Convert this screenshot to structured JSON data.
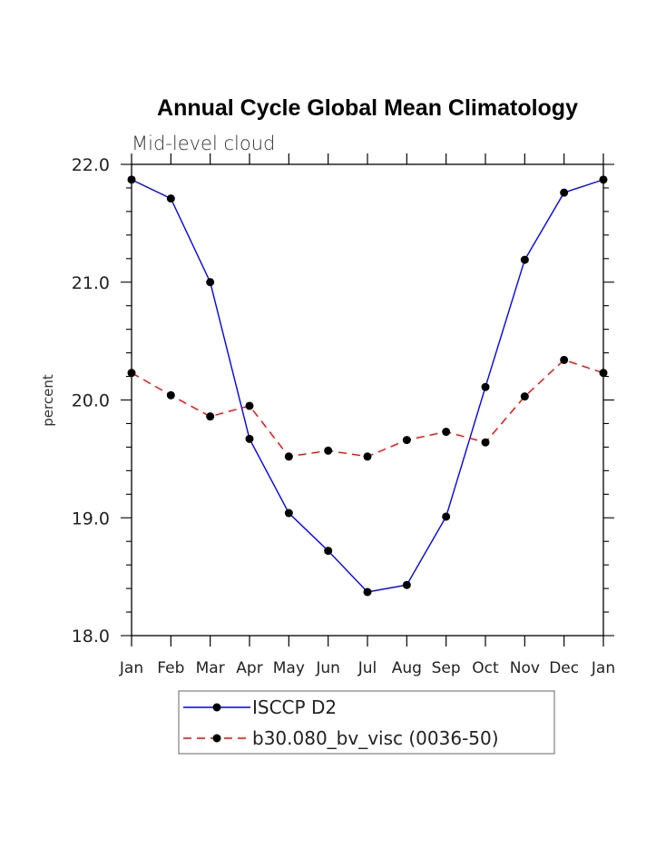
{
  "chart_data": {
    "type": "line",
    "title": "Annual Cycle Global Mean Climatology",
    "subtitle": "Mid-level cloud",
    "xlabel": "",
    "ylabel": "percent",
    "categories": [
      "Jan",
      "Feb",
      "Mar",
      "Apr",
      "May",
      "Jun",
      "Jul",
      "Aug",
      "Sep",
      "Oct",
      "Nov",
      "Dec",
      "Jan"
    ],
    "ylim": [
      18.0,
      22.0
    ],
    "yticks": [
      "18.0",
      "19.0",
      "20.0",
      "21.0",
      "22.0"
    ],
    "grid": false,
    "legend_position": "bottom-center",
    "series": [
      {
        "name": "ISCCP D2",
        "color": "#0000ff",
        "line_style": "solid",
        "marker": "filled-circle",
        "values": [
          21.87,
          21.71,
          21.0,
          19.67,
          19.04,
          18.72,
          18.37,
          18.43,
          19.01,
          20.11,
          21.19,
          21.76,
          21.87
        ]
      },
      {
        "name": "b30.080_bv_visc (0036-50)",
        "color": "#ff0000",
        "line_style": "dashed",
        "marker": "filled-circle",
        "values": [
          20.23,
          20.04,
          19.86,
          19.95,
          19.52,
          19.57,
          19.52,
          19.66,
          19.73,
          19.64,
          20.03,
          20.34,
          20.23
        ]
      }
    ]
  }
}
